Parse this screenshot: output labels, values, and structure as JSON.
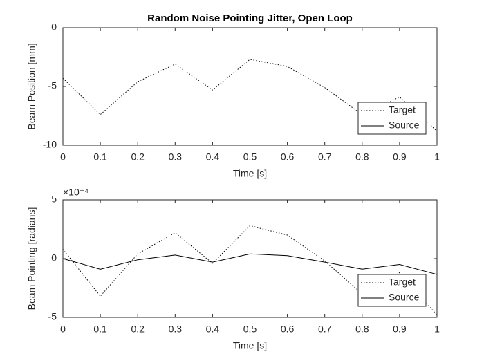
{
  "chart_data": [
    {
      "type": "line",
      "title": "Random Noise Pointing Jitter, Open Loop",
      "x_label": "Time [s]",
      "y_label": "Beam Position [mm]",
      "x": [
        0,
        0.1,
        0.2,
        0.3,
        0.4,
        0.5,
        0.6,
        0.7,
        0.8,
        0.9,
        1
      ],
      "series": [
        {
          "name": "Target",
          "color": "#000000",
          "dash": "dotted",
          "values": [
            -4.3,
            -7.4,
            -4.6,
            -3.1,
            -5.3,
            -2.7,
            -3.3,
            -5.1,
            -7.4,
            -5.9,
            -8.8
          ]
        },
        {
          "name": "Source",
          "color": "#000000",
          "dash": "solid",
          "values": [
            0,
            0,
            0,
            0,
            0,
            0,
            0,
            0,
            0,
            0,
            0
          ]
        }
      ],
      "xlim": [
        0,
        1
      ],
      "xticks": [
        0,
        0.1,
        0.2,
        0.3,
        0.4,
        0.5,
        0.6,
        0.7,
        0.8,
        0.9,
        1
      ],
      "ylim": [
        -10,
        0
      ],
      "yticks": [
        -10,
        -5,
        0
      ],
      "legend": "southeast"
    },
    {
      "type": "line",
      "x_label": "Time [s]",
      "y_label": "Beam Pointing [radians]",
      "exponent_label": "×10⁻⁴",
      "x": [
        0,
        0.1,
        0.2,
        0.3,
        0.4,
        0.5,
        0.6,
        0.7,
        0.8,
        0.9,
        1
      ],
      "series": [
        {
          "name": "Target",
          "color": "#000000",
          "dash": "dotted",
          "values": [
            0.8,
            -3.2,
            0.4,
            2.2,
            -0.4,
            2.8,
            2.0,
            -0.2,
            -3.0,
            -1.2,
            -4.8
          ]
        },
        {
          "name": "Source",
          "color": "#000000",
          "dash": "solid",
          "values": [
            0,
            -0.9,
            -0.1,
            0.3,
            -0.3,
            0.4,
            0.25,
            -0.3,
            -0.9,
            -0.5,
            -1.35
          ]
        }
      ],
      "xlim": [
        0,
        1
      ],
      "xticks": [
        0,
        0.1,
        0.2,
        0.3,
        0.4,
        0.5,
        0.6,
        0.7,
        0.8,
        0.9,
        1
      ],
      "ylim": [
        -5,
        5
      ],
      "yticks": [
        -5,
        0,
        5
      ],
      "legend": "southeast"
    }
  ]
}
